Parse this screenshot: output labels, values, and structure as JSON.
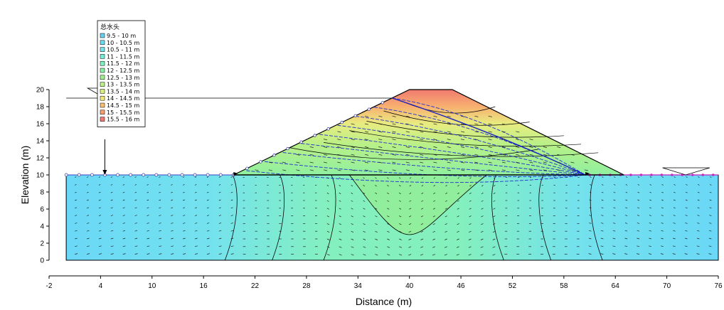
{
  "chart_data": {
    "type": "heatmap",
    "xlabel": "Distance (m)",
    "ylabel": "Elevation (m)",
    "xlim": [
      -2,
      76
    ],
    "ylim": [
      0,
      20
    ],
    "x_ticks": [
      -2,
      4,
      10,
      16,
      22,
      28,
      34,
      40,
      46,
      52,
      58,
      64,
      70,
      76
    ],
    "y_ticks": [
      0,
      2,
      4,
      6,
      8,
      10,
      12,
      14,
      16,
      18,
      20
    ],
    "grid": false,
    "legend": {
      "title": "总水头",
      "position": "top-left",
      "entries": [
        {
          "label": "9.5 - 10 m",
          "color": "#64d2f0"
        },
        {
          "label": "10 - 10.5 m",
          "color": "#6cdaf0"
        },
        {
          "label": "10.5 - 11 m",
          "color": "#72e4ea"
        },
        {
          "label": "11 - 11.5 m",
          "color": "#78ecd8"
        },
        {
          "label": "11.5 - 12 m",
          "color": "#80f0c0"
        },
        {
          "label": "12 - 12.5 m",
          "color": "#8cf0a4"
        },
        {
          "label": "12.5 - 13 m",
          "color": "#a0f090"
        },
        {
          "label": "13 - 13.5 m",
          "color": "#bcf088"
        },
        {
          "label": "13.5 - 14 m",
          "color": "#d8f080"
        },
        {
          "label": "14 - 14.5 m",
          "color": "#f0e87c"
        },
        {
          "label": "14.5 - 15 m",
          "color": "#f8c070"
        },
        {
          "label": "15 - 15.5 m",
          "color": "#f8a070"
        },
        {
          "label": "15.5 - 16 m",
          "color": "#f07a70"
        }
      ]
    },
    "foundation_outline": [
      [
        0,
        0
      ],
      [
        76,
        0
      ],
      [
        76,
        10
      ],
      [
        0,
        10
      ]
    ],
    "embankment_outline": [
      [
        19.5,
        10
      ],
      [
        40,
        20
      ],
      [
        45,
        20
      ],
      [
        65,
        10
      ]
    ],
    "water_table_left_elevation": 19,
    "water_table_right_elevation": 10,
    "head_contours_x_at_base": [
      18.5,
      24,
      30,
      51,
      56.5,
      62.5
    ],
    "inner_contour_bottom": [
      40,
      3
    ]
  }
}
